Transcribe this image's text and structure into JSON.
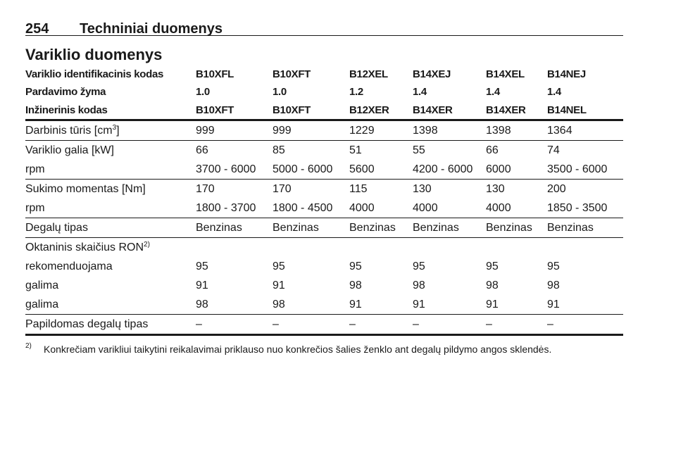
{
  "header": {
    "page_number": "254",
    "title": "Techniniai duomenys"
  },
  "section_title": "Variklio duomenys",
  "table": {
    "header_rows": [
      [
        "Variklio identifikacinis kodas",
        "B10XFL",
        "B10XFT",
        "B12XEL",
        "B14XEJ",
        "B14XEL",
        "B14NEJ"
      ],
      [
        "Pardavimo žyma",
        "1.0",
        "1.0",
        "1.2",
        "1.4",
        "1.4",
        "1.4"
      ],
      [
        "Inžinerinis kodas",
        "B10XFT",
        "B10XFT",
        "B12XER",
        "B14XER",
        "B14XER",
        "B14NEL"
      ]
    ],
    "groups": [
      {
        "rows": [
          {
            "label": "Darbinis tūris [cm",
            "label_sup": "3",
            "label_suffix": "]",
            "cells": [
              "999",
              "999",
              "1229",
              "1398",
              "1398",
              "1364"
            ]
          }
        ]
      },
      {
        "rows": [
          {
            "label": "Variklio galia [kW]",
            "cells": [
              "66",
              "85",
              "51",
              "55",
              "66",
              "74"
            ]
          },
          {
            "label": "rpm",
            "cells": [
              "3700 - 6000",
              "5000 - 6000",
              "5600",
              "4200 - 6000",
              "6000",
              "3500 - 6000"
            ]
          }
        ]
      },
      {
        "rows": [
          {
            "label": "Sukimo momentas [Nm]",
            "cells": [
              "170",
              "170",
              "115",
              "130",
              "130",
              "200"
            ]
          },
          {
            "label": "rpm",
            "cells": [
              "1800 - 3700",
              "1800 - 4500",
              "4000",
              "4000",
              "4000",
              "1850 - 3500"
            ]
          }
        ]
      },
      {
        "rows": [
          {
            "label": "Degalų tipas",
            "cells": [
              "Benzinas",
              "Benzinas",
              "Benzinas",
              "Benzinas",
              "Benzinas",
              "Benzinas"
            ]
          }
        ]
      },
      {
        "rows": [
          {
            "label": "Oktaninis skaičius RON",
            "label_sup": "2)"
          },
          {
            "label": "rekomenduojama",
            "cells": [
              "95",
              "95",
              "95",
              "95",
              "95",
              "95"
            ]
          },
          {
            "label": "galima",
            "cells": [
              "91",
              "91",
              "98",
              "98",
              "98",
              "98"
            ]
          },
          {
            "label": "galima",
            "cells": [
              "98",
              "98",
              "91",
              "91",
              "91",
              "91"
            ]
          }
        ]
      },
      {
        "rows": [
          {
            "label": "Papildomas degalų tipas",
            "cells": [
              "–",
              "–",
              "–",
              "–",
              "–",
              "–"
            ]
          }
        ]
      }
    ]
  },
  "footnote": {
    "marker": "2)",
    "text": "Konkrečiam varikliui taikytini reikalavimai priklauso nuo konkrečios šalies ženklo ant degalų pildymo angos sklendės."
  }
}
